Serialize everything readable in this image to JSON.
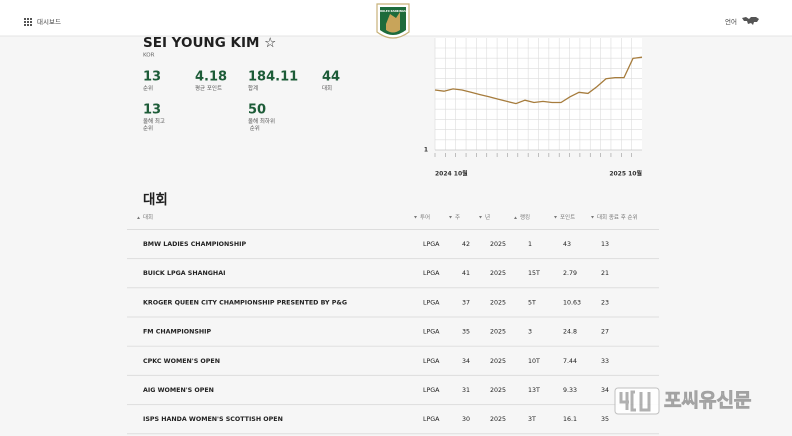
{
  "header": {
    "dashboard": "대시보드",
    "logo": "ROLEX RANKINGS",
    "language": "언어"
  },
  "player": {
    "name": "SEI YOUNG KIM ☆",
    "country": "KOR",
    "stats": [
      {
        "value": "13",
        "label": "순위"
      },
      {
        "value": "4.18",
        "label": "평균 포인트"
      },
      {
        "value": "184.11",
        "label": "합계"
      },
      {
        "value": "44",
        "label": "대회"
      },
      {
        "value": "13",
        "label": "올해 최고 순위"
      },
      {
        "value": "50",
        "label": "올해 최하위 순위"
      }
    ]
  },
  "rank_chart": {
    "type": "line",
    "color": "#a67c3d",
    "values": [
      54,
      53,
      55,
      54,
      52,
      50,
      48,
      46,
      44,
      42,
      45,
      43,
      44,
      43,
      43,
      48,
      52,
      51,
      57,
      64,
      65,
      65,
      82,
      83
    ],
    "ylim": [
      1,
      100
    ],
    "yticks": [
      1
    ],
    "xlabels": [
      "2024 10월",
      "2025 10월"
    ]
  },
  "table": {
    "title": "대회",
    "columns": [
      "대회",
      "투어",
      "주",
      "년",
      "랭킹",
      "포인트",
      "대회 종료 후 순위"
    ],
    "rows": [
      [
        "BMW LADIES CHAMPIONSHIP",
        "LPGA",
        "42",
        "2025",
        "1",
        "43",
        "13"
      ],
      [
        "BUICK LPGA SHANGHAI",
        "LPGA",
        "41",
        "2025",
        "15T",
        "2.79",
        "21"
      ],
      [
        "KROGER QUEEN CITY CHAMPIONSHIP PRESENTED BY P&G",
        "LPGA",
        "37",
        "2025",
        "5T",
        "10.63",
        "23"
      ],
      [
        "FM CHAMPIONSHIP",
        "LPGA",
        "35",
        "2025",
        "3",
        "24.8",
        "27"
      ],
      [
        "CPKC WOMEN'S OPEN",
        "LPGA",
        "34",
        "2025",
        "10T",
        "7.44",
        "33"
      ],
      [
        "AIG WOMEN'S OPEN",
        "LPGA",
        "31",
        "2025",
        "13T",
        "9.33",
        "34"
      ],
      [
        "ISPS HANDA WOMEN'S SCOTTISH OPEN",
        "LPGA",
        "30",
        "2025",
        "3T",
        "16.1",
        "35"
      ]
    ]
  },
  "watermark": "포씨유신문"
}
